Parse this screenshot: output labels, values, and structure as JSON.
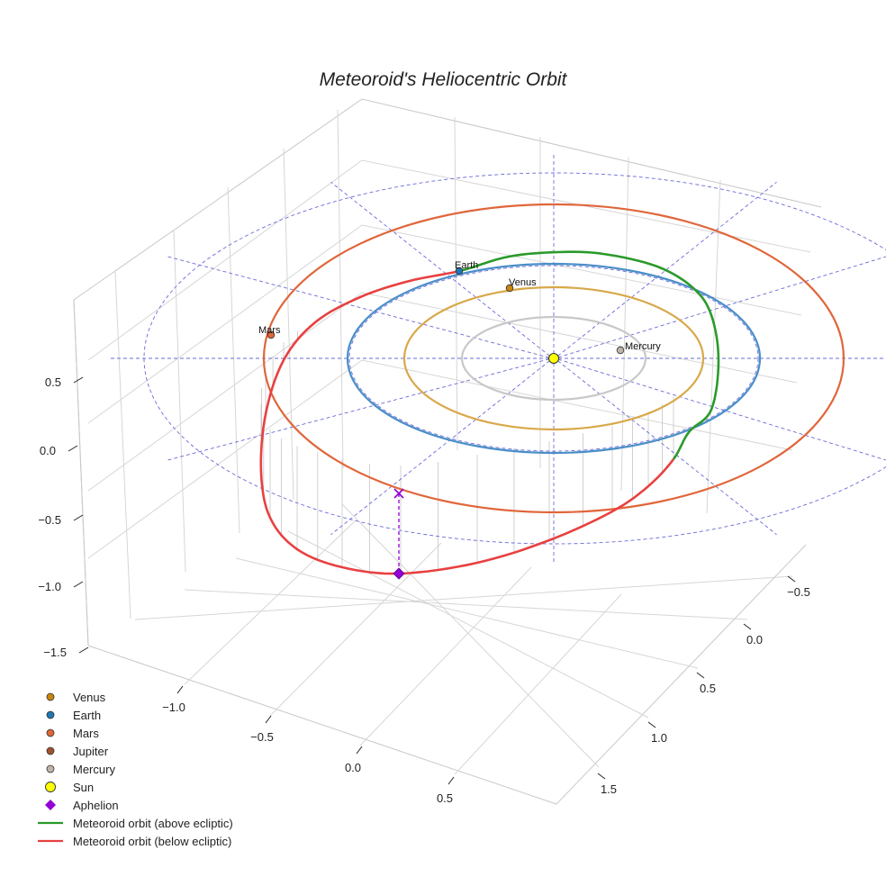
{
  "chart_data": {
    "type": "scatter",
    "title": "Meteoroid's Heliocentric Orbit",
    "xlabel": "",
    "ylabel": "",
    "zlabel": "",
    "x_ticks": [
      "−1.0",
      "−0.5",
      "0.0",
      "0.5"
    ],
    "y_ticks": [
      "−0.5",
      "0.0",
      "0.5",
      "1.0",
      "1.5"
    ],
    "z_ticks": [
      "0.5",
      "0.0",
      "−0.5",
      "−1.0",
      "−1.5"
    ],
    "grid": true,
    "legend_position": "bottom-left",
    "colors": {
      "venus": "#c8860d",
      "earth": "#1f77b4",
      "mars": "#e0663a",
      "jupiter": "#a0522d",
      "mercury": "#c0b4a8",
      "sun": "#ffff00",
      "aphelion": "#9400d3",
      "above": "#2a9a2a",
      "below": "#e84040",
      "venus_orbit": "#d8a84a",
      "mercury_orbit": "#c8c8c8",
      "earth_orbit": "#4a8ec8",
      "reference": "#6a6ad8"
    },
    "planets": [
      {
        "name": "Mercury",
        "orbit_au": 0.39
      },
      {
        "name": "Venus",
        "orbit_au": 0.72
      },
      {
        "name": "Earth",
        "orbit_au": 1.0
      },
      {
        "name": "Mars",
        "orbit_au": 1.52
      }
    ],
    "legend": [
      {
        "label": "Venus",
        "marker": "dot",
        "color_key": "venus"
      },
      {
        "label": "Earth",
        "marker": "dot",
        "color_key": "earth"
      },
      {
        "label": "Mars",
        "marker": "dot",
        "color_key": "mars"
      },
      {
        "label": "Jupiter",
        "marker": "dot",
        "color_key": "jupiter"
      },
      {
        "label": "Mercury",
        "marker": "dot",
        "color_key": "mercury"
      },
      {
        "label": "Sun",
        "marker": "sun",
        "color_key": "sun"
      },
      {
        "label": "Aphelion",
        "marker": "diamond",
        "color_key": "aphelion"
      },
      {
        "label": "Meteoroid orbit (above ecliptic)",
        "marker": "line",
        "color_key": "above"
      },
      {
        "label": "Meteoroid orbit (below ecliptic)",
        "marker": "line",
        "color_key": "below"
      }
    ]
  }
}
